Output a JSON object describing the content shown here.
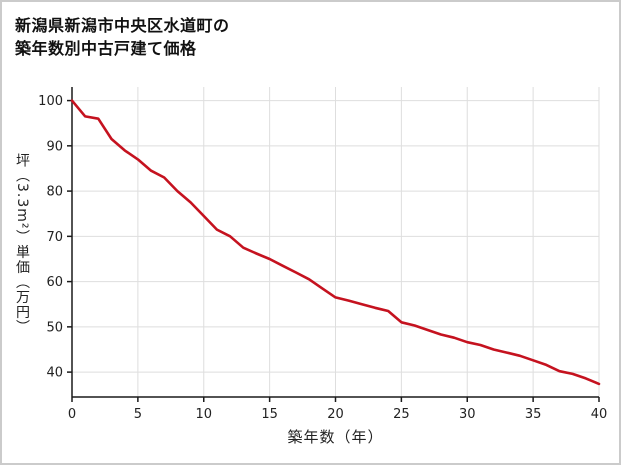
{
  "chart_data": {
    "type": "line",
    "title_lines": [
      "新潟県新潟市中央区水道町の",
      "築年数別中古戸建て価格"
    ],
    "xlabel": "築年数（年）",
    "ylabel": "坪（3.3m²）単価（万円）",
    "x": [
      0,
      1,
      2,
      3,
      4,
      5,
      6,
      7,
      8,
      9,
      10,
      11,
      12,
      13,
      14,
      15,
      16,
      17,
      18,
      19,
      20,
      21,
      22,
      23,
      24,
      25,
      26,
      27,
      28,
      29,
      30,
      31,
      32,
      33,
      34,
      35,
      36,
      37,
      38,
      39,
      40
    ],
    "values": [
      100,
      96.5,
      96,
      91.5,
      89,
      87,
      84.5,
      83,
      80,
      77.5,
      74.5,
      71.5,
      70,
      67.5,
      66.2,
      65,
      63.5,
      62,
      60.5,
      58.5,
      56.5,
      55.8,
      55,
      54.2,
      53.5,
      51,
      50.3,
      49.3,
      48.3,
      47.6,
      46.6,
      46,
      45,
      44.3,
      43.6,
      42.6,
      41.6,
      40.2,
      39.6,
      38.6,
      37.4
    ],
    "xlim": [
      0,
      40
    ],
    "ylim": [
      34.5,
      103
    ],
    "xticks": [
      0,
      5,
      10,
      15,
      20,
      25,
      30,
      35,
      40
    ],
    "yticks": [
      40,
      50,
      60,
      70,
      80,
      90,
      100
    ],
    "grid": true,
    "legend": "none",
    "line_color": "#c5121f",
    "axis_color": "#1a1a1a",
    "grid_color": "#dedede",
    "tick_label_color": "#222222"
  }
}
